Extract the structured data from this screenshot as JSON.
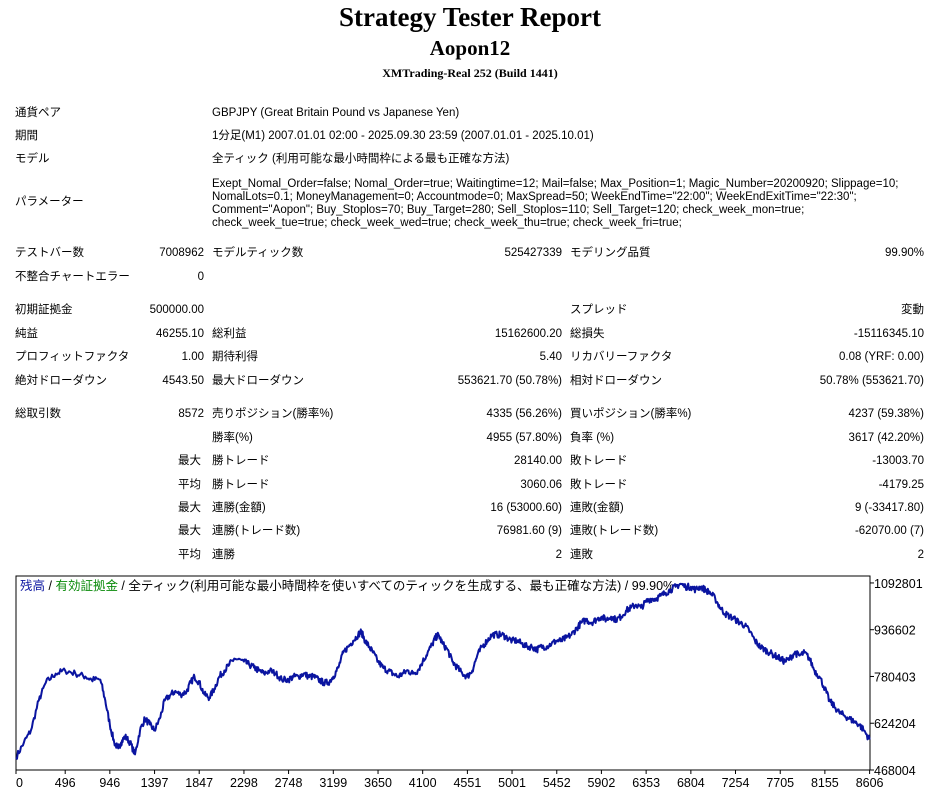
{
  "report": {
    "title": "Strategy Tester Report",
    "expert": "Aopon12",
    "server": "XMTrading-Real 252 (Build 1441)"
  },
  "info": {
    "symbol_label": "通貨ペア",
    "symbol_value": "GBPJPY (Great Britain Pound vs Japanese Yen)",
    "period_label": "期間",
    "period_value": "1分足(M1) 2007.01.01 02:00 - 2025.09.30 23:59 (2007.01.01 - 2025.10.01)",
    "model_label": "モデル",
    "model_value": "全ティック (利用可能な最小時間枠による最も正確な方法)",
    "params_label": "パラメーター",
    "params_value": "Exept_Nomal_Order=false; Nomal_Order=true; Waitingtime=12; Mail=false; Max_Position=1; Magic_Number=20200920; Slippage=10;\nNomalLots=0.1; MoneyManagement=0; Accountmode=0; MaxSpread=50; WeekEndTime=\"22:00\"; WeekEndExitTime=\"22:30\";\nComment=\"Aopon\"; Buy_Stoplos=70; Buy_Target=280; Sell_Stoplos=110; Sell_Target=120; check_week_mon=true;\ncheck_week_tue=true; check_week_wed=true; check_week_thu=true; check_week_fri=true;"
  },
  "stats": [
    {
      "label": "テストバー数",
      "value": "7008962",
      "top": 0
    },
    {
      "label": "モデルティック数",
      "value": "525427339"
    },
    {
      "label": "モデリング品質",
      "value": "99.90%"
    },
    {
      "label": "不整合チャートエラー",
      "value": "0"
    },
    {
      "label": "初期証拠金",
      "value": "500000.00"
    },
    {
      "label": "スプレッド",
      "value": "変動"
    },
    {
      "label": "純益",
      "value": "46255.10"
    },
    {
      "label": "総利益",
      "value": "15162600.20"
    },
    {
      "label": "総損失",
      "value": "-15116345.10"
    },
    {
      "label": "プロフィットファクタ",
      "value": "1.00"
    },
    {
      "label": "期待利得",
      "value": "5.40"
    },
    {
      "label": "リカバリーファクタ",
      "value": "0.08 (YRF: 0.00)"
    },
    {
      "label": "絶対ドローダウン",
      "value": "4543.50"
    },
    {
      "label": "最大ドローダウン",
      "value": "553621.70 (50.78%)"
    },
    {
      "label": "相対ドローダウン",
      "value": "50.78% (553621.70)"
    },
    {
      "label": "総取引数",
      "value": "8572"
    },
    {
      "label": "売りポジション(勝率%)",
      "value": "4335 (56.26%)"
    },
    {
      "label": "買いポジション(勝率%)",
      "value": "4237 (59.38%)"
    },
    {
      "label": "勝率(%)",
      "value": "4955 (57.80%)"
    },
    {
      "label": "負率 (%)",
      "value": "3617 (42.20%)"
    },
    {
      "label": "最大",
      "value": ""
    },
    {
      "label": "勝トレード",
      "value": "28140.00"
    },
    {
      "label": "敗トレード",
      "value": "-13003.70"
    },
    {
      "label": "平均",
      "value": ""
    },
    {
      "label": "勝トレード",
      "value": "3060.06"
    },
    {
      "label": "敗トレード",
      "value": "-4179.25"
    },
    {
      "label": "最大",
      "value": ""
    },
    {
      "label": "連勝(金額)",
      "value": "16 (53000.60)"
    },
    {
      "label": "連敗(金額)",
      "value": "9 (-33417.80)"
    },
    {
      "label": "最大",
      "value": ""
    },
    {
      "label": "連勝(トレード数)",
      "value": "76981.60 (9)"
    },
    {
      "label": "連敗(トレード数)",
      "value": "-62070.00 (7)"
    },
    {
      "label": "平均",
      "value": ""
    },
    {
      "label": "連勝",
      "value": "2"
    },
    {
      "label": "連敗",
      "value": "2"
    }
  ],
  "chart_legend": {
    "balance": "残高",
    "sep1": " / ",
    "equity": "有効証拠金",
    "sep2": " / ",
    "rest": "全ティック(利用可能な最小時間枠を使いすべてのティックを生成する、最も正確な方法) / 99.90%"
  },
  "colors": {
    "balance_line": "#0a14a0",
    "equity_label": "#0a8a0a",
    "balance_label": "#0a14a0",
    "grid": "#dddddd"
  },
  "chart_data": {
    "type": "line",
    "title": "",
    "xlabel": "",
    "ylabel": "",
    "xlim": [
      0,
      8610
    ],
    "ylim": [
      468004,
      1116000
    ],
    "x_ticks": [
      0,
      496,
      946,
      1397,
      1847,
      2298,
      2748,
      3199,
      3650,
      4100,
      4551,
      5001,
      5452,
      5902,
      6353,
      6804,
      7254,
      7705,
      8155,
      8606
    ],
    "y_ticks": [
      468004,
      624204,
      780403,
      936602,
      1092801
    ],
    "series": [
      {
        "values": [
          [
            0,
            510000
          ],
          [
            80,
            560000
          ],
          [
            150,
            600000
          ],
          [
            230,
            700000
          ],
          [
            300,
            760000
          ],
          [
            400,
            790000
          ],
          [
            496,
            800000
          ],
          [
            600,
            790000
          ],
          [
            700,
            780000
          ],
          [
            760,
            770000
          ],
          [
            850,
            770000
          ],
          [
            900,
            700000
          ],
          [
            946,
            620000
          ],
          [
            990,
            560000
          ],
          [
            1030,
            540000
          ],
          [
            1060,
            560000
          ],
          [
            1100,
            580000
          ],
          [
            1150,
            560000
          ],
          [
            1200,
            520000
          ],
          [
            1250,
            600000
          ],
          [
            1300,
            640000
          ],
          [
            1350,
            620000
          ],
          [
            1397,
            600000
          ],
          [
            1450,
            640000
          ],
          [
            1500,
            700000
          ],
          [
            1560,
            720000
          ],
          [
            1600,
            730000
          ],
          [
            1660,
            720000
          ],
          [
            1720,
            730000
          ],
          [
            1760,
            760000
          ],
          [
            1800,
            780000
          ],
          [
            1847,
            760000
          ],
          [
            1900,
            720000
          ],
          [
            1950,
            710000
          ],
          [
            2000,
            740000
          ],
          [
            2050,
            780000
          ],
          [
            2100,
            800000
          ],
          [
            2150,
            820000
          ],
          [
            2200,
            840000
          ],
          [
            2298,
            830000
          ],
          [
            2350,
            820000
          ],
          [
            2400,
            810000
          ],
          [
            2450,
            800000
          ],
          [
            2500,
            790000
          ],
          [
            2560,
            800000
          ],
          [
            2620,
            790000
          ],
          [
            2680,
            770000
          ],
          [
            2748,
            770000
          ],
          [
            2800,
            780000
          ],
          [
            2850,
            780000
          ],
          [
            2900,
            790000
          ],
          [
            2950,
            780000
          ],
          [
            3000,
            780000
          ],
          [
            3050,
            770000
          ],
          [
            3100,
            760000
          ],
          [
            3150,
            760000
          ],
          [
            3199,
            780000
          ],
          [
            3250,
            810000
          ],
          [
            3300,
            860000
          ],
          [
            3350,
            880000
          ],
          [
            3400,
            900000
          ],
          [
            3450,
            920000
          ],
          [
            3480,
            930000
          ],
          [
            3520,
            900000
          ],
          [
            3560,
            880000
          ],
          [
            3600,
            860000
          ],
          [
            3650,
            830000
          ],
          [
            3700,
            810000
          ],
          [
            3750,
            800000
          ],
          [
            3800,
            790000
          ],
          [
            3850,
            780000
          ],
          [
            3900,
            790000
          ],
          [
            3950,
            800000
          ],
          [
            4000,
            790000
          ],
          [
            4050,
            800000
          ],
          [
            4100,
            830000
          ],
          [
            4150,
            860000
          ],
          [
            4200,
            890000
          ],
          [
            4230,
            910000
          ],
          [
            4260,
            920000
          ],
          [
            4300,
            890000
          ],
          [
            4350,
            870000
          ],
          [
            4400,
            830000
          ],
          [
            4450,
            810000
          ],
          [
            4500,
            790000
          ],
          [
            4551,
            780000
          ],
          [
            4600,
            800000
          ],
          [
            4650,
            850000
          ],
          [
            4700,
            880000
          ],
          [
            4750,
            900000
          ],
          [
            4800,
            920000
          ],
          [
            4850,
            920000
          ],
          [
            4900,
            920000
          ],
          [
            4950,
            910000
          ],
          [
            5001,
            900000
          ],
          [
            5050,
            900000
          ],
          [
            5100,
            890000
          ],
          [
            5150,
            880000
          ],
          [
            5200,
            880000
          ],
          [
            5250,
            870000
          ],
          [
            5300,
            880000
          ],
          [
            5350,
            880000
          ],
          [
            5400,
            890000
          ],
          [
            5452,
            900000
          ],
          [
            5500,
            900000
          ],
          [
            5550,
            910000
          ],
          [
            5600,
            920000
          ],
          [
            5650,
            940000
          ],
          [
            5700,
            960000
          ],
          [
            5750,
            970000
          ],
          [
            5800,
            960000
          ],
          [
            5850,
            970000
          ],
          [
            5902,
            980000
          ],
          [
            5950,
            970000
          ],
          [
            6000,
            980000
          ],
          [
            6050,
            970000
          ],
          [
            6100,
            980000
          ],
          [
            6150,
            1000000
          ],
          [
            6200,
            1010000
          ],
          [
            6250,
            1020000
          ],
          [
            6300,
            1010000
          ],
          [
            6353,
            1030000
          ],
          [
            6400,
            1040000
          ],
          [
            6450,
            1040000
          ],
          [
            6500,
            1050000
          ],
          [
            6550,
            1060000
          ],
          [
            6600,
            1070000
          ],
          [
            6650,
            1080000
          ],
          [
            6700,
            1090000
          ],
          [
            6750,
            1080000
          ],
          [
            6804,
            1080000
          ],
          [
            6850,
            1070000
          ],
          [
            6900,
            1080000
          ],
          [
            6950,
            1070000
          ],
          [
            7000,
            1060000
          ],
          [
            7050,
            1040000
          ],
          [
            7100,
            1010000
          ],
          [
            7150,
            990000
          ],
          [
            7200,
            980000
          ],
          [
            7254,
            970000
          ],
          [
            7300,
            960000
          ],
          [
            7350,
            950000
          ],
          [
            7400,
            930000
          ],
          [
            7450,
            900000
          ],
          [
            7500,
            880000
          ],
          [
            7550,
            870000
          ],
          [
            7600,
            860000
          ],
          [
            7650,
            850000
          ],
          [
            7705,
            840000
          ],
          [
            7750,
            830000
          ],
          [
            7800,
            840000
          ],
          [
            7850,
            860000
          ],
          [
            7900,
            850000
          ],
          [
            7950,
            860000
          ],
          [
            8000,
            840000
          ],
          [
            8050,
            800000
          ],
          [
            8100,
            780000
          ],
          [
            8155,
            740000
          ],
          [
            8200,
            700000
          ],
          [
            8250,
            680000
          ],
          [
            8300,
            660000
          ],
          [
            8350,
            650000
          ],
          [
            8400,
            640000
          ],
          [
            8450,
            630000
          ],
          [
            8500,
            620000
          ],
          [
            8550,
            600000
          ],
          [
            8606,
            570000
          ]
        ]
      }
    ]
  }
}
